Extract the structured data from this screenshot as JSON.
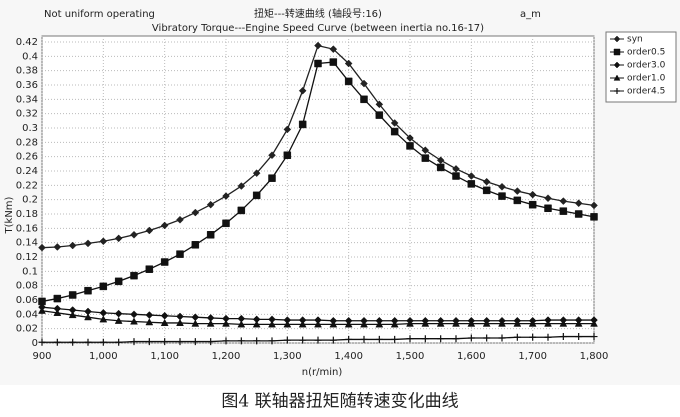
{
  "chart_data": {
    "type": "line",
    "title": "Vibratory Torque---Engine Speed Curve (between inertia no.16-17)",
    "header_left": "Not uniform operating",
    "header_center": "扭矩---转速曲线 (轴段号:16)",
    "header_right": "a_m",
    "x_label": "n(r/min)",
    "y_label": "T(kNm)",
    "caption": "图4 联轴器扭矩随转速变化曲线",
    "x": [
      900,
      925,
      950,
      975,
      1000,
      1025,
      1050,
      1075,
      1100,
      1125,
      1150,
      1175,
      1200,
      1225,
      1250,
      1275,
      1300,
      1325,
      1350,
      1375,
      1400,
      1425,
      1450,
      1475,
      1500,
      1525,
      1550,
      1575,
      1600,
      1625,
      1650,
      1675,
      1700,
      1725,
      1750,
      1775,
      1800
    ],
    "series": [
      {
        "name": "syn",
        "color": "#222222",
        "marker": "diamond",
        "values": [
          0.133,
          0.134,
          0.136,
          0.139,
          0.142,
          0.146,
          0.151,
          0.157,
          0.164,
          0.172,
          0.182,
          0.193,
          0.205,
          0.219,
          0.237,
          0.262,
          0.298,
          0.352,
          0.415,
          0.41,
          0.39,
          0.362,
          0.333,
          0.307,
          0.286,
          0.269,
          0.255,
          0.243,
          0.233,
          0.225,
          0.218,
          0.212,
          0.207,
          0.202,
          0.198,
          0.195,
          0.192
        ]
      },
      {
        "name": "order0.5",
        "color": "#111111",
        "marker": "square",
        "values": [
          0.058,
          0.062,
          0.067,
          0.073,
          0.079,
          0.086,
          0.094,
          0.103,
          0.113,
          0.124,
          0.137,
          0.151,
          0.167,
          0.185,
          0.206,
          0.23,
          0.262,
          0.305,
          0.39,
          0.392,
          0.365,
          0.34,
          0.318,
          0.295,
          0.275,
          0.258,
          0.245,
          0.233,
          0.222,
          0.213,
          0.205,
          0.199,
          0.193,
          0.188,
          0.184,
          0.18,
          0.176
        ]
      },
      {
        "name": "order3.0",
        "color": "#111111",
        "marker": "diamond",
        "values": [
          0.05,
          0.048,
          0.046,
          0.044,
          0.042,
          0.041,
          0.04,
          0.039,
          0.038,
          0.037,
          0.036,
          0.035,
          0.034,
          0.034,
          0.033,
          0.033,
          0.032,
          0.032,
          0.032,
          0.031,
          0.031,
          0.031,
          0.031,
          0.031,
          0.031,
          0.031,
          0.031,
          0.031,
          0.031,
          0.031,
          0.031,
          0.031,
          0.031,
          0.032,
          0.032,
          0.032,
          0.032
        ]
      },
      {
        "name": "order1.0",
        "color": "#111111",
        "marker": "triangle",
        "values": [
          0.045,
          0.042,
          0.039,
          0.036,
          0.033,
          0.031,
          0.03,
          0.029,
          0.028,
          0.028,
          0.027,
          0.027,
          0.027,
          0.026,
          0.026,
          0.026,
          0.026,
          0.026,
          0.026,
          0.026,
          0.026,
          0.026,
          0.026,
          0.026,
          0.027,
          0.027,
          0.027,
          0.027,
          0.027,
          0.027,
          0.027,
          0.027,
          0.027,
          0.027,
          0.027,
          0.027,
          0.027
        ]
      },
      {
        "name": "order4.5",
        "color": "#111111",
        "marker": "plus",
        "values": [
          0.001,
          0.001,
          0.001,
          0.001,
          0.001,
          0.001,
          0.002,
          0.002,
          0.002,
          0.002,
          0.002,
          0.002,
          0.003,
          0.003,
          0.003,
          0.003,
          0.004,
          0.004,
          0.004,
          0.004,
          0.005,
          0.005,
          0.005,
          0.005,
          0.006,
          0.006,
          0.006,
          0.006,
          0.007,
          0.007,
          0.007,
          0.008,
          0.008,
          0.008,
          0.009,
          0.009,
          0.009
        ]
      }
    ],
    "xlim": [
      900,
      1800
    ],
    "xticks": [
      900,
      {
        "value": 1000,
        "label": "1,000"
      },
      {
        "value": 1100,
        "label": "1,100"
      },
      {
        "value": 1200,
        "label": "1,200"
      },
      {
        "value": 1300,
        "label": "1,300"
      },
      {
        "value": 1400,
        "label": "1,400"
      },
      {
        "value": 1500,
        "label": "1,500"
      },
      {
        "value": 1600,
        "label": "1,600"
      },
      {
        "value": 1700,
        "label": "1,700"
      },
      {
        "value": 1800,
        "label": "1,800"
      }
    ],
    "ylim": [
      0,
      0.42
    ],
    "yticks": [
      0,
      0.02,
      0.04,
      0.06,
      0.08,
      0.1,
      0.12,
      0.14,
      0.16,
      0.18,
      0.2,
      0.22,
      0.24,
      0.26,
      0.28,
      0.3,
      0.32,
      0.34,
      0.36,
      0.38,
      0.4,
      0.42
    ],
    "grid": true,
    "legend": "top-right"
  }
}
